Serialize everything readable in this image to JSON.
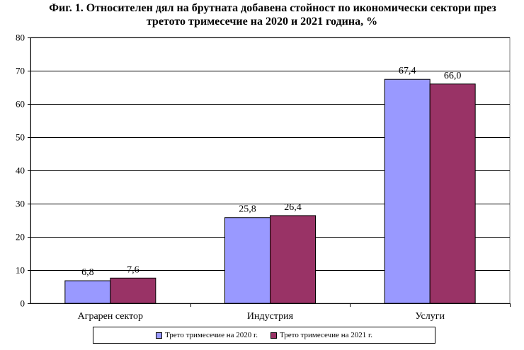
{
  "chart_data": {
    "type": "bar",
    "title_line1": "Фиг. 1. Относителен дял на брутната добавена стойност по икономически сектори през",
    "title_line2": "третото тримесечие на 2020 и 2021 година, %",
    "categories": [
      "Аграрен сектор",
      "Индустрия",
      "Услуги"
    ],
    "series": [
      {
        "name": "Трето тримесечие на 2020 г.",
        "values": [
          6.8,
          25.8,
          67.4
        ],
        "labels": [
          "6,8",
          "25,8",
          "67,4"
        ],
        "color": "#9999ff"
      },
      {
        "name": "Трето тримесечие на 2021 г.",
        "values": [
          7.6,
          26.4,
          66.0
        ],
        "labels": [
          "7,6",
          "26,4",
          "66,0"
        ],
        "color": "#993366"
      }
    ],
    "ylim": [
      0,
      80
    ],
    "yticks": [
      0,
      10,
      20,
      30,
      40,
      50,
      60,
      70,
      80
    ],
    "grid": true,
    "legend_position": "bottom",
    "xlabel": "",
    "ylabel": ""
  }
}
